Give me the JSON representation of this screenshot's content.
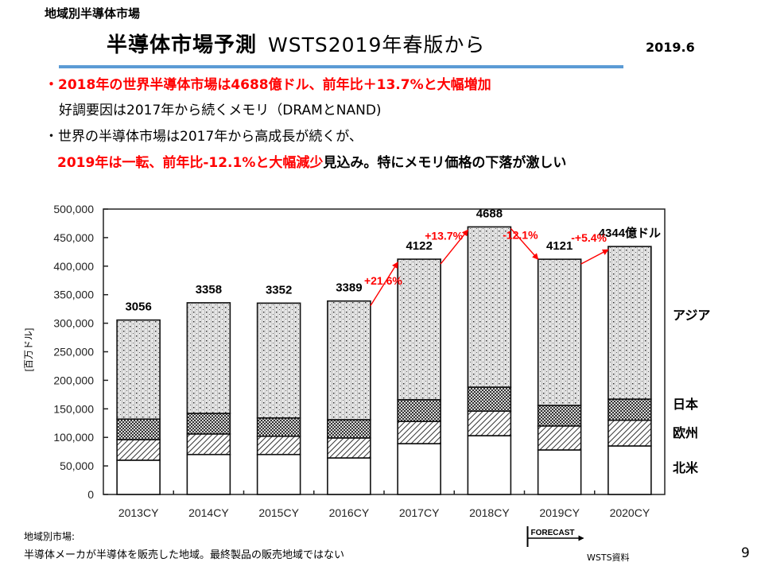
{
  "slide": {
    "section_title": "地域別半導体市場",
    "title_main": "半導体市場予測",
    "title_sub": "WSTS2019年春版から",
    "date": "2019.6",
    "bullets": [
      {
        "text": "・2018年の世界半導体市場は4688億ドル、前年比＋13.7%と大幅増加",
        "style": "red"
      },
      {
        "text": "好調要因は2017年から続くメモリ（DRAMとNAND)",
        "style": "normal"
      },
      {
        "text": "・世界の半導体市場は2017年から高成長が続くが、",
        "style": "normal"
      },
      {
        "red_part": "2019年は一転、前年比-12.1%と大幅減少",
        "black_part": "見込み。特にメモリ価格の下落が激しい",
        "style": "mixed"
      }
    ],
    "footnote_line1": "地域別市場:",
    "footnote_line2": "半導体メーカが半導体を販売した地域。最終製品の販売地域ではない",
    "source": "WSTS資料",
    "page_number": "9"
  },
  "chart_data": {
    "type": "bar",
    "stacked": true,
    "title": "",
    "xlabel": "",
    "ylabel": "[百万ドル]",
    "ylim": [
      0,
      500000
    ],
    "yticks": [
      0,
      50000,
      100000,
      150000,
      200000,
      250000,
      300000,
      350000,
      400000,
      450000,
      500000
    ],
    "ytick_labels": [
      "0",
      "50,000",
      "100,000",
      "150,000",
      "200,000",
      "250,000",
      "300,000",
      "350,000",
      "400,000",
      "450,000",
      "500,000"
    ],
    "categories": [
      "2013CY",
      "2014CY",
      "2015CY",
      "2016CY",
      "2017CY",
      "2018CY",
      "2019CY",
      "2020CY"
    ],
    "series": [
      {
        "name": "北米",
        "pattern": "white",
        "values": [
          60000,
          70000,
          70000,
          64000,
          89000,
          103000,
          78000,
          85000
        ]
      },
      {
        "name": "欧州",
        "pattern": "diagonal",
        "values": [
          36000,
          36000,
          32000,
          35000,
          39000,
          43000,
          42000,
          45000
        ]
      },
      {
        "name": "日本",
        "pattern": "checker",
        "values": [
          36000,
          36000,
          32000,
          32000,
          38000,
          42000,
          36000,
          37000
        ]
      },
      {
        "name": "アジア",
        "pattern": "dotted",
        "values": [
          173600,
          193800,
          201200,
          207900,
          246200,
          280800,
          256100,
          267400
        ]
      }
    ],
    "totals_label": [
      "3056",
      "3358",
      "3352",
      "3389",
      "4122",
      "4688",
      "4121",
      "4344億ドル"
    ],
    "totals": [
      305600,
      335800,
      335200,
      338900,
      412200,
      468800,
      412100,
      434400
    ],
    "legend": [
      "アジア",
      "日本",
      "欧州",
      "北米"
    ],
    "legend_placement": "right",
    "grid": false,
    "annotations": [
      {
        "text": "+21.6%",
        "from": "2016CY",
        "to": "2017CY",
        "color": "#ff0000"
      },
      {
        "text": "+13.7%",
        "from": "2017CY",
        "to": "2018CY",
        "color": "#ff0000"
      },
      {
        "text": "-12.1%",
        "from": "2018CY",
        "to": "2019CY",
        "color": "#ff0000"
      },
      {
        "text": "-+5.4%",
        "from": "2019CY",
        "to": "2020CY",
        "color": "#ff0000"
      }
    ],
    "forecast_label": "FORECAST",
    "forecast_from": "2019CY"
  },
  "colors": {
    "accent_rule": "#5b9bd5",
    "highlight": "#ff0000",
    "text": "#000000"
  }
}
